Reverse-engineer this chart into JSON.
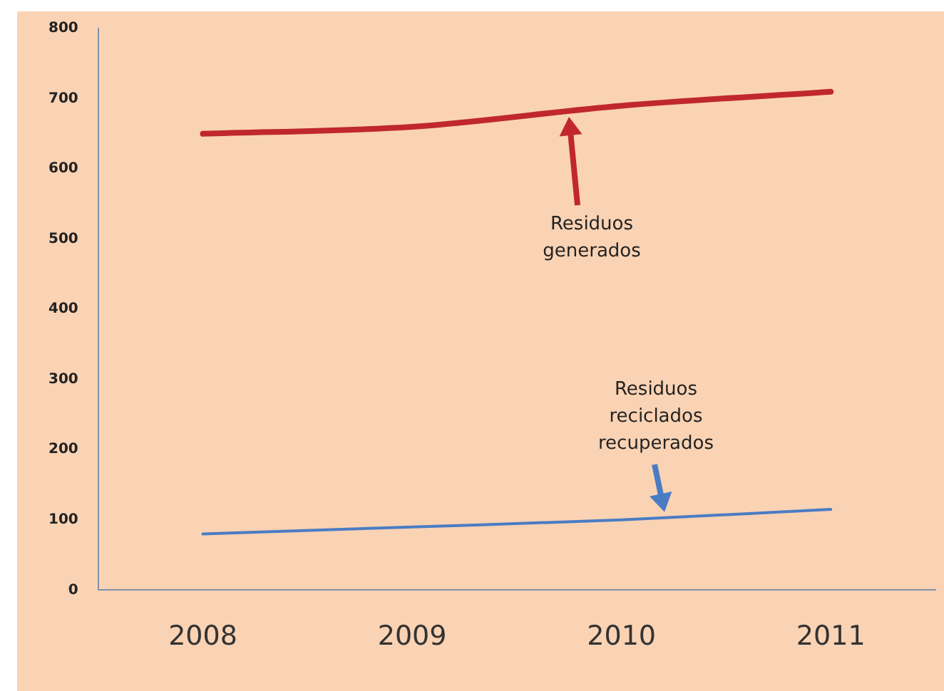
{
  "chart_data": {
    "type": "line",
    "categories": [
      "2008",
      "2009",
      "2010",
      "2011"
    ],
    "series": [
      {
        "color": "#c0282d",
        "values": [
          650,
          660,
          690,
          710
        ]
      },
      {
        "color": "#4a7cc4",
        "values": [
          80,
          90,
          100,
          115
        ]
      }
    ],
    "ylim": [
      0,
      800
    ],
    "yticks": [
      0,
      100,
      200,
      300,
      400,
      500,
      600,
      700,
      800
    ],
    "grid": false,
    "legend": false,
    "marker": "none",
    "line_style": "solid",
    "annotations": [
      "Residuos generados",
      "Residuos reciclados recuperados"
    ]
  }
}
